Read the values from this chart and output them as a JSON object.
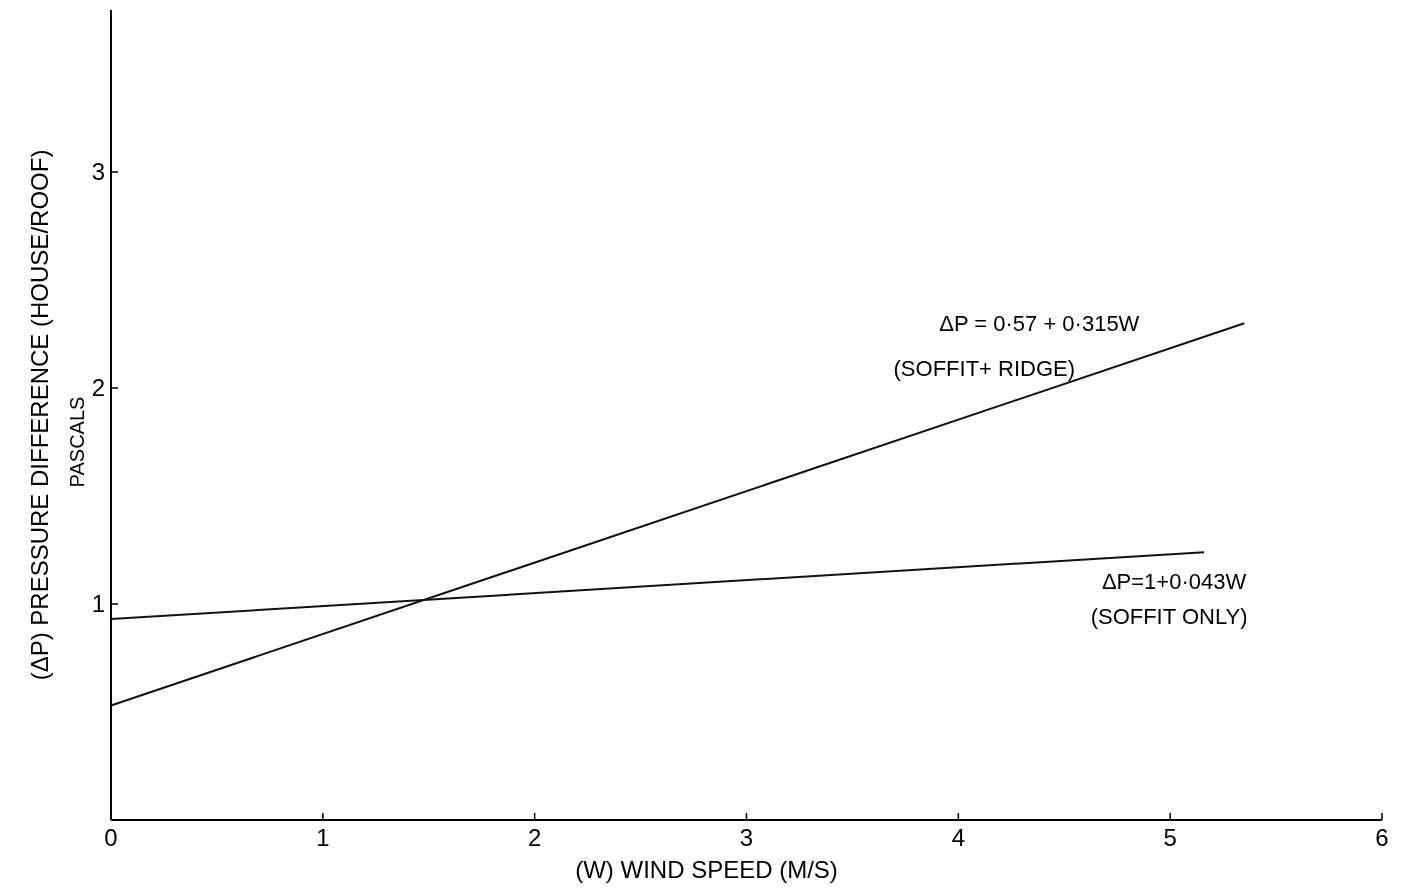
{
  "chart_data": {
    "type": "line",
    "xlabel": "(W)  WIND SPEED (M/S)",
    "ylabel": "(ΔP) PRESSURE  DIFFERENCE (HOUSE/ROOF)",
    "y2label": "PASCALS",
    "xlim": [
      0,
      6
    ],
    "ylim": [
      0,
      3.75
    ],
    "xticks": [
      0,
      1,
      2,
      3,
      4,
      5,
      6
    ],
    "yticks": [
      1,
      2,
      3
    ],
    "grid": false,
    "line_style": "solid",
    "series": [
      {
        "color": "#111111",
        "x": [
          0,
          5.35
        ],
        "values": [
          0.53,
          2.3
        ]
      },
      {
        "color": "#111111",
        "x": [
          0,
          5.16
        ],
        "values": [
          0.93,
          1.24
        ]
      }
    ],
    "annotations": [
      "ΔP = 0·57 + 0·315W",
      "(SOFFIT+ RIDGE)",
      "ΔP=1+0·043W",
      "(SOFFIT ONLY)"
    ]
  }
}
